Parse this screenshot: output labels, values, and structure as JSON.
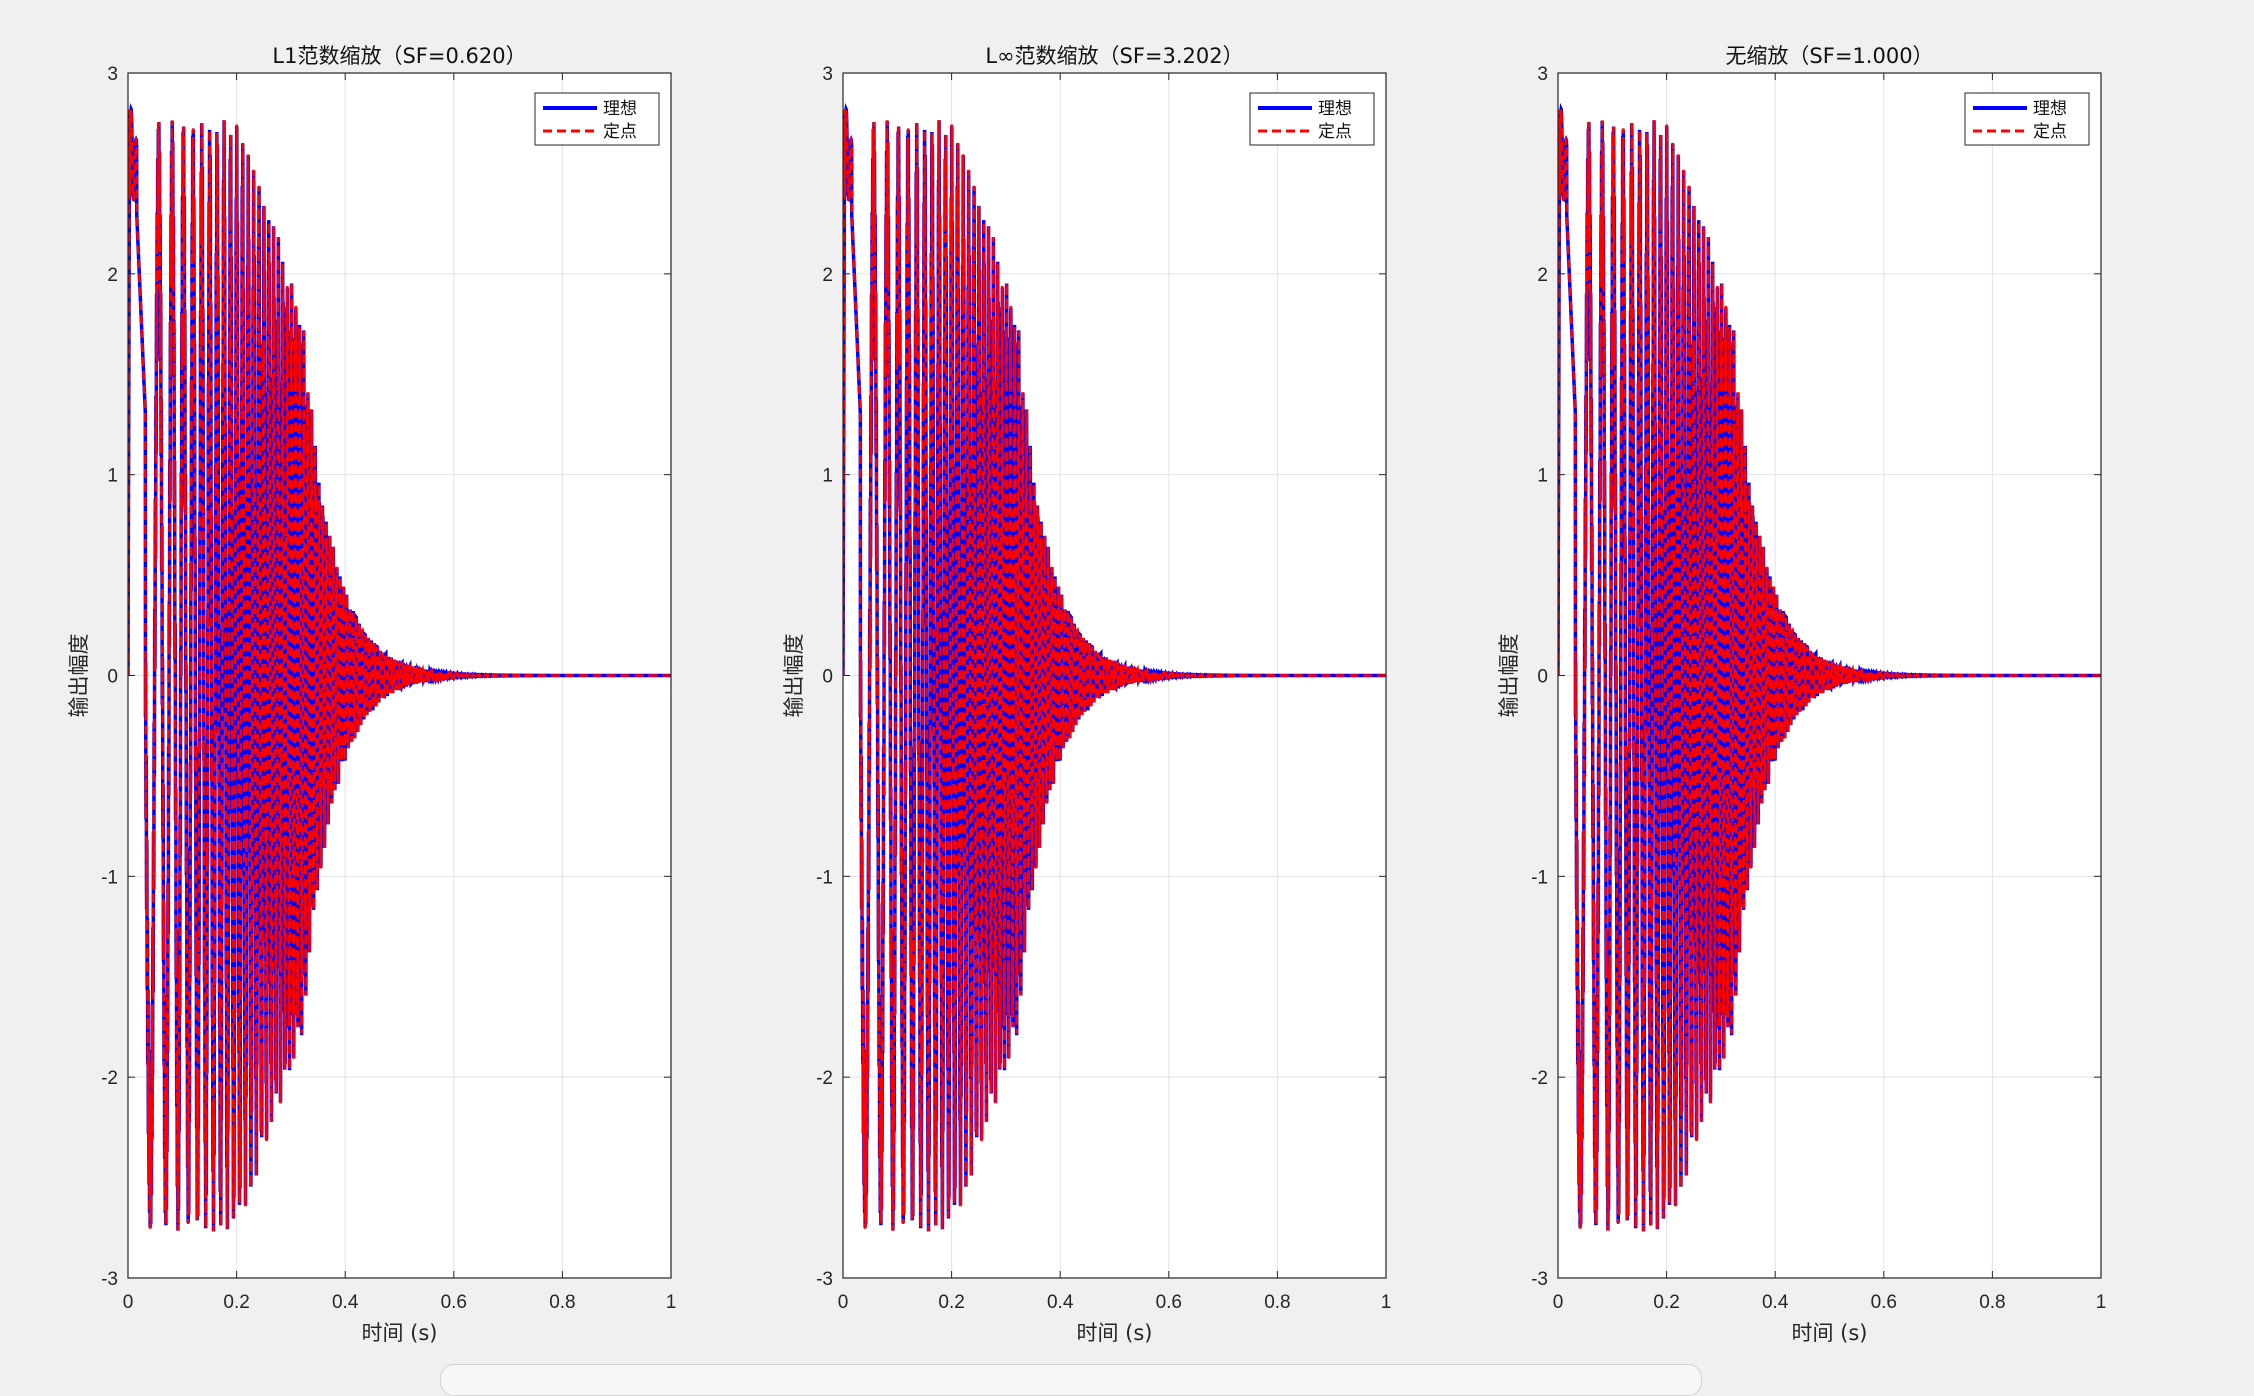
{
  "figure": {
    "background": "#f0f0f0",
    "axes_background": "#ffffff",
    "grid_color": "#e3e3e3",
    "axis_color": "#262626"
  },
  "chart_data": [
    {
      "type": "line",
      "title": "L1范数缩放（SF=0.620）",
      "xlabel": "时间 (s)",
      "ylabel": "输出幅度",
      "xlim": [
        0,
        1
      ],
      "ylim": [
        -3,
        3
      ],
      "xticks": [
        0,
        0.2,
        0.4,
        0.6,
        0.8,
        1
      ],
      "xtick_labels": [
        "0",
        "0.2",
        "0.4",
        "0.6",
        "0.8",
        "1"
      ],
      "yticks": [
        3,
        2,
        1,
        0,
        -1,
        -2,
        -3
      ],
      "ytick_labels": [
        "3",
        "2",
        "1",
        "0",
        "-1",
        "-2",
        "-3"
      ],
      "grid": true,
      "legend_position": "top-right",
      "series": [
        {
          "name": "理想",
          "color": "#0000ff",
          "style": "solid"
        },
        {
          "name": "定点",
          "color": "#ff0000",
          "style": "dashed"
        }
      ],
      "signal": {
        "description_points": [
          [
            0.0,
            0.0
          ],
          [
            0.005,
            2.93
          ],
          [
            0.012,
            2.35
          ],
          [
            0.03,
            1.5
          ],
          [
            0.05,
            -2.49
          ],
          [
            0.07,
            2.49
          ],
          [
            0.085,
            -2.49
          ],
          [
            0.1,
            2.49
          ],
          [
            0.2,
            2.45
          ],
          [
            0.25,
            -2.4
          ],
          [
            0.3,
            1.7
          ],
          [
            0.35,
            0.8
          ],
          [
            0.4,
            0.25
          ],
          [
            0.45,
            0.1
          ],
          [
            0.5,
            0.02
          ],
          [
            0.55,
            0.0
          ],
          [
            1.0,
            0.0
          ]
        ]
      }
    },
    {
      "type": "line",
      "title": "L∞范数缩放（SF=3.202）",
      "xlabel": "时间 (s)",
      "ylabel": "输出幅度",
      "xlim": [
        0,
        1
      ],
      "ylim": [
        -3,
        3
      ],
      "xticks": [
        0,
        0.2,
        0.4,
        0.6,
        0.8,
        1
      ],
      "xtick_labels": [
        "0",
        "0.2",
        "0.4",
        "0.6",
        "0.8",
        "1"
      ],
      "yticks": [
        3,
        2,
        1,
        0,
        -1,
        -2,
        -3
      ],
      "ytick_labels": [
        "3",
        "2",
        "1",
        "0",
        "-1",
        "-2",
        "-3"
      ],
      "grid": true,
      "legend_position": "top-right",
      "series": [
        {
          "name": "理想",
          "color": "#0000ff",
          "style": "solid"
        },
        {
          "name": "定点",
          "color": "#ff0000",
          "style": "dashed"
        }
      ]
    },
    {
      "type": "line",
      "title": "无缩放（SF=1.000）",
      "xlabel": "时间 (s)",
      "ylabel": "输出幅度",
      "xlim": [
        0,
        1
      ],
      "ylim": [
        -3,
        3
      ],
      "xticks": [
        0,
        0.2,
        0.4,
        0.6,
        0.8,
        1
      ],
      "xtick_labels": [
        "0",
        "0.2",
        "0.4",
        "0.6",
        "0.8",
        "1"
      ],
      "yticks": [
        3,
        2,
        1,
        0,
        -1,
        -2,
        -3
      ],
      "ytick_labels": [
        "3",
        "2",
        "1",
        "0",
        "-1",
        "-2",
        "-3"
      ],
      "grid": true,
      "legend_position": "top-right",
      "series": [
        {
          "name": "理想",
          "color": "#0000ff",
          "style": "solid"
        },
        {
          "name": "定点",
          "color": "#ff0000",
          "style": "dashed"
        }
      ]
    }
  ]
}
